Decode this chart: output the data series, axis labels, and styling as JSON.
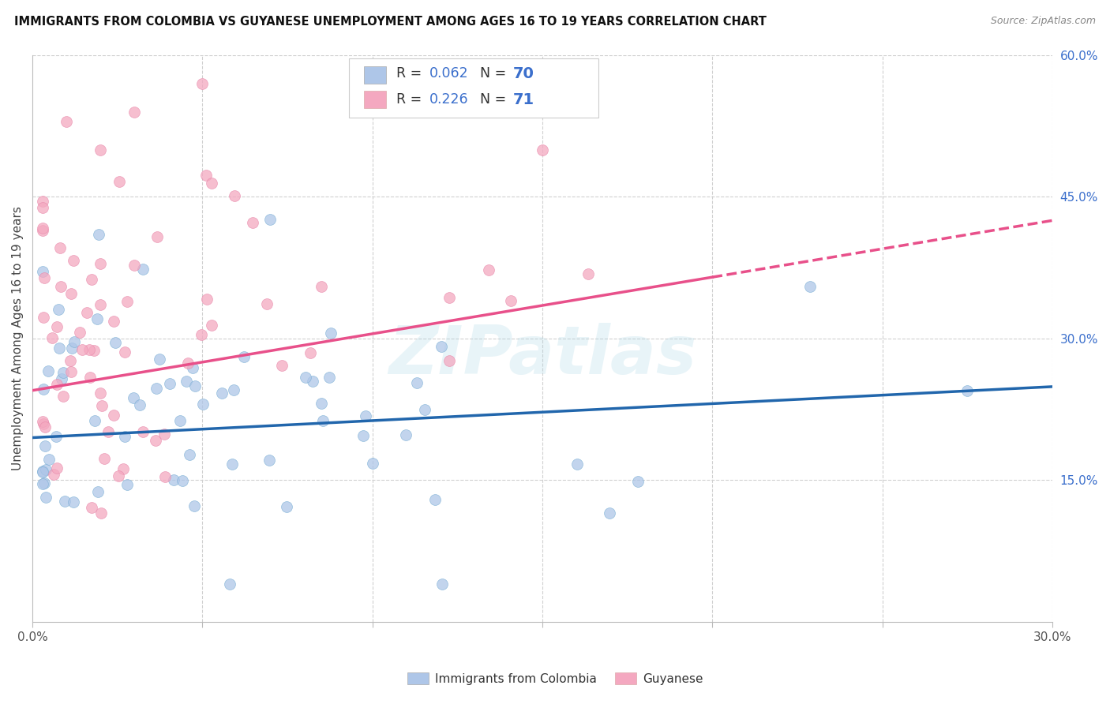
{
  "title": "IMMIGRANTS FROM COLOMBIA VS GUYANESE UNEMPLOYMENT AMONG AGES 16 TO 19 YEARS CORRELATION CHART",
  "source": "Source: ZipAtlas.com",
  "ylabel": "Unemployment Among Ages 16 to 19 years",
  "xlim": [
    0.0,
    0.3
  ],
  "ylim": [
    0.0,
    0.6
  ],
  "xtick_vals": [
    0.0,
    0.05,
    0.1,
    0.15,
    0.2,
    0.25,
    0.3
  ],
  "xtick_labels": [
    "0.0%",
    "",
    "",
    "",
    "",
    "",
    "30.0%"
  ],
  "ytick_right_vals": [
    0.15,
    0.3,
    0.45,
    0.6
  ],
  "ytick_right_labels": [
    "15.0%",
    "30.0%",
    "45.0%",
    "60.0%"
  ],
  "blue_color": "#aec6e8",
  "pink_color": "#f4a8c0",
  "blue_line_color": "#2166ac",
  "pink_line_color": "#e8508a",
  "blue_R": 0.062,
  "blue_N": 70,
  "pink_R": 0.226,
  "pink_N": 71,
  "watermark": "ZIPatlas",
  "bg_color": "#ffffff",
  "grid_color": "#d0d0d0",
  "right_tick_color": "#3b6fcc",
  "title_color": "#111111",
  "source_color": "#888888",
  "legend_val_color": "#3b6fcc",
  "legend_label_color": "#444444",
  "blue_intercept": 0.195,
  "blue_slope": 0.18,
  "pink_intercept": 0.245,
  "pink_slope": 0.6
}
